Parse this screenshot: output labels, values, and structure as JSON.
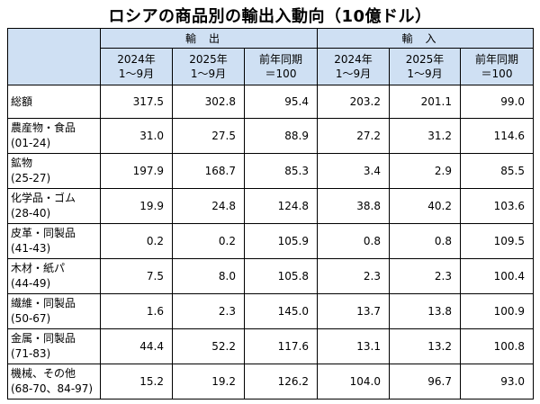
{
  "title": "ロシアの商品別の輸出入動向（10億ドル）",
  "header": {
    "export_group": "輸出",
    "import_group": "輸入",
    "columns": [
      {
        "line1": "2024年",
        "line2": "1～9月"
      },
      {
        "line1": "2025年",
        "line2": "1～9月"
      },
      {
        "line1": "前年同期",
        "line2": "＝100"
      }
    ]
  },
  "rows": [
    {
      "name": "総額",
      "code": "",
      "values": [
        "317.5",
        "302.8",
        "95.4",
        "203.2",
        "201.1",
        "99.0"
      ]
    },
    {
      "name": "農産物・食品",
      "code": "(01-24)",
      "values": [
        "31.0",
        "27.5",
        "88.9",
        "27.2",
        "31.2",
        "114.6"
      ]
    },
    {
      "name": "鉱物",
      "code": "(25-27)",
      "values": [
        "197.9",
        "168.7",
        "85.3",
        "3.4",
        "2.9",
        "85.5"
      ]
    },
    {
      "name": "化学品・ゴム",
      "code": "(28-40)",
      "values": [
        "19.9",
        "24.8",
        "124.8",
        "38.8",
        "40.2",
        "103.6"
      ]
    },
    {
      "name": "皮革・同製品",
      "code": "(41-43)",
      "values": [
        "0.2",
        "0.2",
        "105.9",
        "0.8",
        "0.8",
        "109.5"
      ]
    },
    {
      "name": "木材・紙パ",
      "code": "(44-49)",
      "values": [
        "7.5",
        "8.0",
        "105.8",
        "2.3",
        "2.3",
        "100.4"
      ]
    },
    {
      "name": "繊維・同製品",
      "code": "(50-67)",
      "values": [
        "1.6",
        "2.3",
        "145.0",
        "13.7",
        "13.8",
        "100.9"
      ]
    },
    {
      "name": "金属・同製品",
      "code": "(71-83)",
      "values": [
        "44.4",
        "52.2",
        "117.6",
        "13.1",
        "13.2",
        "100.8"
      ]
    },
    {
      "name": "機械、その他",
      "code": "(68-70、84-97)",
      "values": [
        "15.2",
        "19.2",
        "126.2",
        "104.0",
        "96.7",
        "93.0"
      ]
    }
  ],
  "colors": {
    "header_fill": "#cfe0f3",
    "border": "#000000"
  }
}
